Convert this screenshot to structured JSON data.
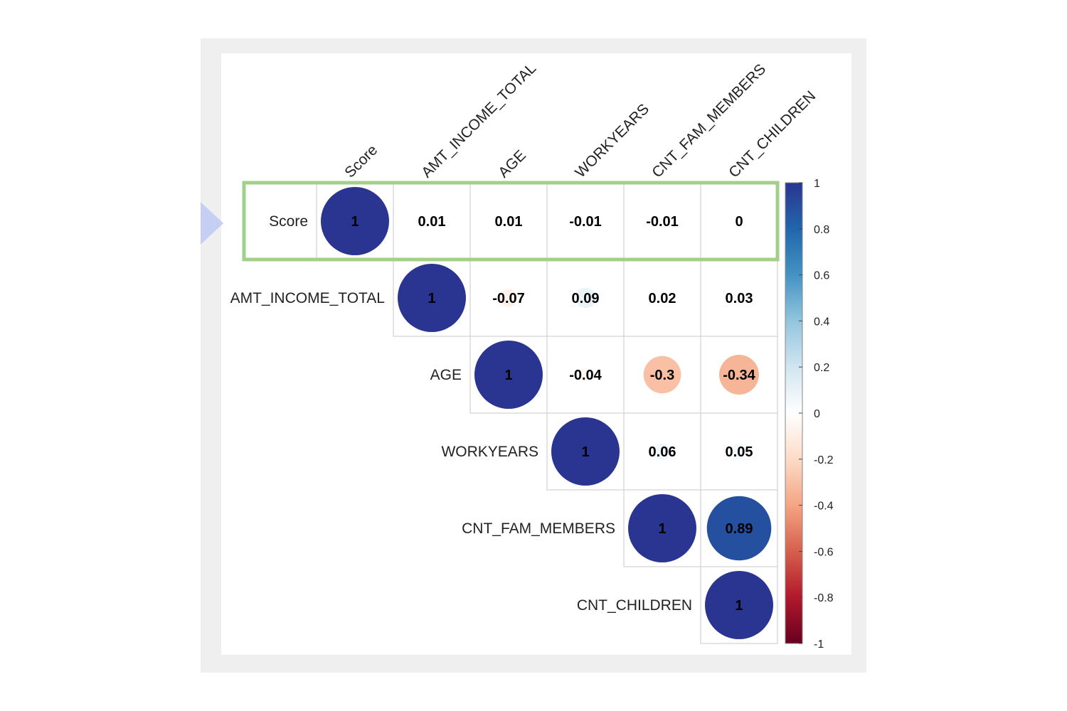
{
  "chart_data": {
    "type": "heatmap",
    "title": "",
    "variables": [
      "Score",
      "AMT_INCOME_TOTAL",
      "AGE",
      "WORKYEARS",
      "CNT_FAM_MEMBERS",
      "CNT_CHILDREN"
    ],
    "matrix": [
      [
        1,
        0.01,
        0.01,
        -0.01,
        -0.01,
        0
      ],
      [
        null,
        1,
        -0.07,
        0.09,
        0.02,
        0.03
      ],
      [
        null,
        null,
        1,
        -0.04,
        -0.3,
        -0.34
      ],
      [
        null,
        null,
        null,
        1,
        0.06,
        0.05
      ],
      [
        null,
        null,
        null,
        null,
        1,
        0.89
      ],
      [
        null,
        null,
        null,
        null,
        null,
        1
      ]
    ],
    "value_labels": [
      [
        "1",
        "0.01",
        "0.01",
        "-0.01",
        "-0.01",
        "0"
      ],
      [
        null,
        "1",
        "-0.07",
        "0.09",
        "0.02",
        "0.03"
      ],
      [
        null,
        null,
        "1",
        "-0.04",
        "-0.3",
        "-0.34"
      ],
      [
        null,
        null,
        null,
        "1",
        "0.06",
        "0.05"
      ],
      [
        null,
        null,
        null,
        null,
        "1",
        "0.89"
      ],
      [
        null,
        null,
        null,
        null,
        null,
        "1"
      ]
    ],
    "layout": "upper-triangle",
    "highlighted_row": "Score",
    "colorbar": {
      "range": [
        -1,
        1
      ],
      "ticks": [
        "1",
        "0.8",
        "0.6",
        "0.4",
        "0.2",
        "0",
        "-0.2",
        "-0.4",
        "-0.6",
        "-0.8",
        "-1"
      ],
      "tick_values": [
        1,
        0.8,
        0.6,
        0.4,
        0.2,
        0,
        -0.2,
        -0.4,
        -0.6,
        -0.8,
        -1
      ],
      "colors": [
        "#67001f",
        "#b2182b",
        "#d6604d",
        "#f4a582",
        "#fddbc7",
        "#ffffff",
        "#d1e5f0",
        "#92c5de",
        "#4393c3",
        "#2166ac",
        "#2a3591"
      ]
    },
    "colors": {
      "highlight_border": "#a3cf8c",
      "pointer": "#c5cff3",
      "grid": "#c8c8c8"
    }
  }
}
